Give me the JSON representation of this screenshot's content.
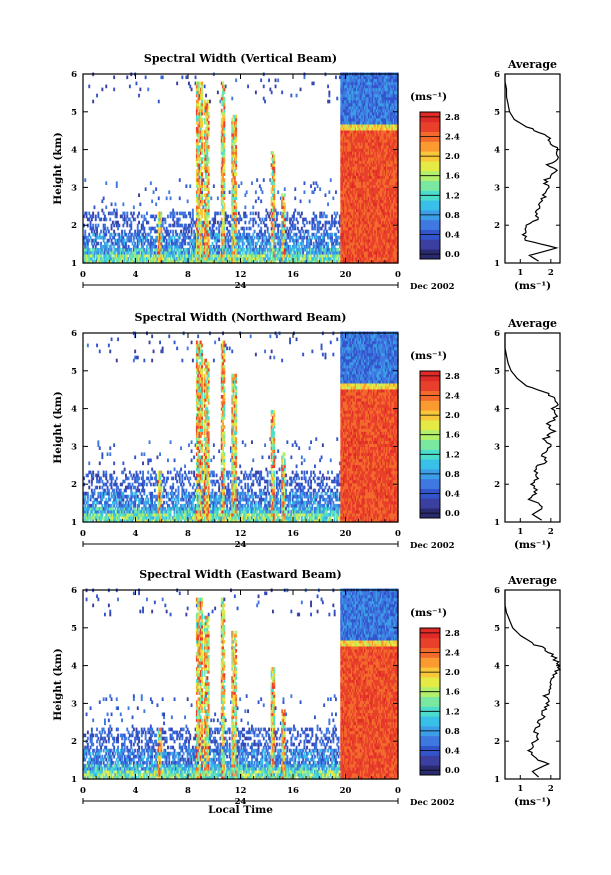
{
  "figure": {
    "x_axis_label": "Local Time",
    "average_title": "Average",
    "average_xlabel": "(ms⁻¹)",
    "colorbar_unit": "(ms⁻¹)",
    "date_label": "Dec 2002",
    "day_label": "24"
  },
  "panels": [
    {
      "title": "Spectral Width (Vertical Beam)",
      "cbar_top": "2.8"
    },
    {
      "title": "Spectral Width (Northward Beam)",
      "cbar_top": "2.8"
    },
    {
      "title": "Spectral Width (Eastward Beam)",
      "cbar_top": "2.8"
    }
  ],
  "chart_data": [
    {
      "type": "heatmap",
      "title": "Spectral Width (Vertical Beam)",
      "xlabel": "",
      "ylabel": "Height (km)",
      "x_ticks": [
        "0",
        "4",
        "8",
        "12",
        "16",
        "20",
        "0"
      ],
      "y_ticks": [
        "1",
        "2",
        "3",
        "4",
        "5",
        "6"
      ],
      "xlim": [
        0,
        24
      ],
      "ylim": [
        1,
        6
      ],
      "colorbar": {
        "unit": "(ms⁻¹)",
        "ticks": [
          "0.0",
          "0.4",
          "0.8",
          "1.2",
          "1.6",
          "2.0",
          "2.4",
          "2.8"
        ],
        "range": [
          0.0,
          3.0
        ]
      },
      "date": "24 Dec 2002",
      "average_profile": {
        "title": "Average",
        "xlabel": "(ms⁻¹)",
        "x_ticks": [
          "1",
          "2"
        ],
        "xlim": [
          0.5,
          2.3
        ],
        "height_km": [
          1.05,
          1.2,
          1.4,
          1.6,
          1.8,
          2.0,
          2.2,
          2.4,
          2.6,
          2.8,
          3.0,
          3.2,
          3.4,
          3.6,
          3.8,
          4.0,
          4.2,
          4.4,
          4.6,
          4.8,
          5.0,
          5.2,
          5.4,
          5.6,
          5.8,
          6.0
        ],
        "width_ms": [
          1.6,
          1.3,
          2.2,
          1.2,
          1.1,
          1.2,
          1.6,
          1.5,
          1.7,
          1.8,
          1.9,
          1.8,
          2.2,
          1.9,
          2.3,
          2.2,
          2.0,
          1.8,
          1.2,
          0.8,
          0.65,
          0.6,
          0.55,
          0.55,
          0.5,
          0.5
        ]
      }
    },
    {
      "type": "heatmap",
      "title": "Spectral Width (Northward Beam)",
      "xlabel": "",
      "ylabel": "Height (km)",
      "x_ticks": [
        "0",
        "4",
        "8",
        "12",
        "16",
        "20",
        "0"
      ],
      "y_ticks": [
        "1",
        "2",
        "3",
        "4",
        "5",
        "6"
      ],
      "xlim": [
        0,
        24
      ],
      "ylim": [
        1,
        6
      ],
      "colorbar": {
        "unit": "(ms⁻¹)",
        "ticks": [
          "0.0",
          "0.4",
          "0.8",
          "1.2",
          "1.6",
          "2.0",
          "2.4",
          "2.8"
        ],
        "range": [
          0.0,
          3.0
        ]
      },
      "date": "24 Dec 2002",
      "average_profile": {
        "title": "Average",
        "xlabel": "(ms⁻¹)",
        "x_ticks": [
          "1",
          "2"
        ],
        "xlim": [
          0.5,
          2.3
        ],
        "height_km": [
          1.05,
          1.2,
          1.4,
          1.6,
          1.8,
          2.0,
          2.2,
          2.4,
          2.6,
          2.8,
          3.0,
          3.2,
          3.4,
          3.6,
          3.8,
          4.0,
          4.2,
          4.4,
          4.6,
          4.8,
          5.0,
          5.2,
          5.4,
          5.6,
          5.8,
          6.0
        ],
        "width_ms": [
          1.7,
          1.4,
          1.8,
          1.3,
          1.5,
          1.4,
          1.6,
          1.5,
          1.8,
          1.7,
          2.0,
          1.8,
          2.1,
          1.9,
          2.2,
          2.1,
          2.2,
          1.9,
          1.2,
          0.9,
          0.7,
          0.6,
          0.55,
          0.5,
          0.5,
          0.5
        ]
      }
    },
    {
      "type": "heatmap",
      "title": "Spectral Width (Eastward Beam)",
      "xlabel": "Local Time",
      "ylabel": "Height (km)",
      "x_ticks": [
        "0",
        "4",
        "8",
        "12",
        "16",
        "20",
        "0"
      ],
      "y_ticks": [
        "1",
        "2",
        "3",
        "4",
        "5",
        "6"
      ],
      "xlim": [
        0,
        24
      ],
      "ylim": [
        1,
        6
      ],
      "colorbar": {
        "unit": "(ms⁻¹)",
        "ticks": [
          "0.0",
          "0.4",
          "0.8",
          "1.2",
          "1.6",
          "2.0",
          "2.4",
          "2.8"
        ],
        "range": [
          0.0,
          3.0
        ]
      },
      "date": "24 Dec 2002",
      "average_profile": {
        "title": "Average",
        "xlabel": "(ms⁻¹)",
        "x_ticks": [
          "1",
          "2"
        ],
        "xlim": [
          0.5,
          2.3
        ],
        "height_km": [
          1.05,
          1.2,
          1.4,
          1.6,
          1.8,
          2.0,
          2.2,
          2.4,
          2.6,
          2.8,
          3.0,
          3.2,
          3.4,
          3.6,
          3.8,
          4.0,
          4.2,
          4.4,
          4.6,
          4.8,
          5.0,
          5.2,
          5.4,
          5.6,
          5.8,
          6.0
        ],
        "width_ms": [
          1.6,
          1.4,
          1.9,
          1.4,
          1.3,
          1.5,
          1.5,
          1.6,
          1.7,
          1.8,
          1.9,
          1.8,
          2.0,
          2.0,
          2.2,
          2.3,
          2.1,
          1.9,
          1.4,
          1.0,
          0.75,
          0.65,
          0.55,
          0.5,
          0.5,
          0.5
        ]
      }
    }
  ]
}
